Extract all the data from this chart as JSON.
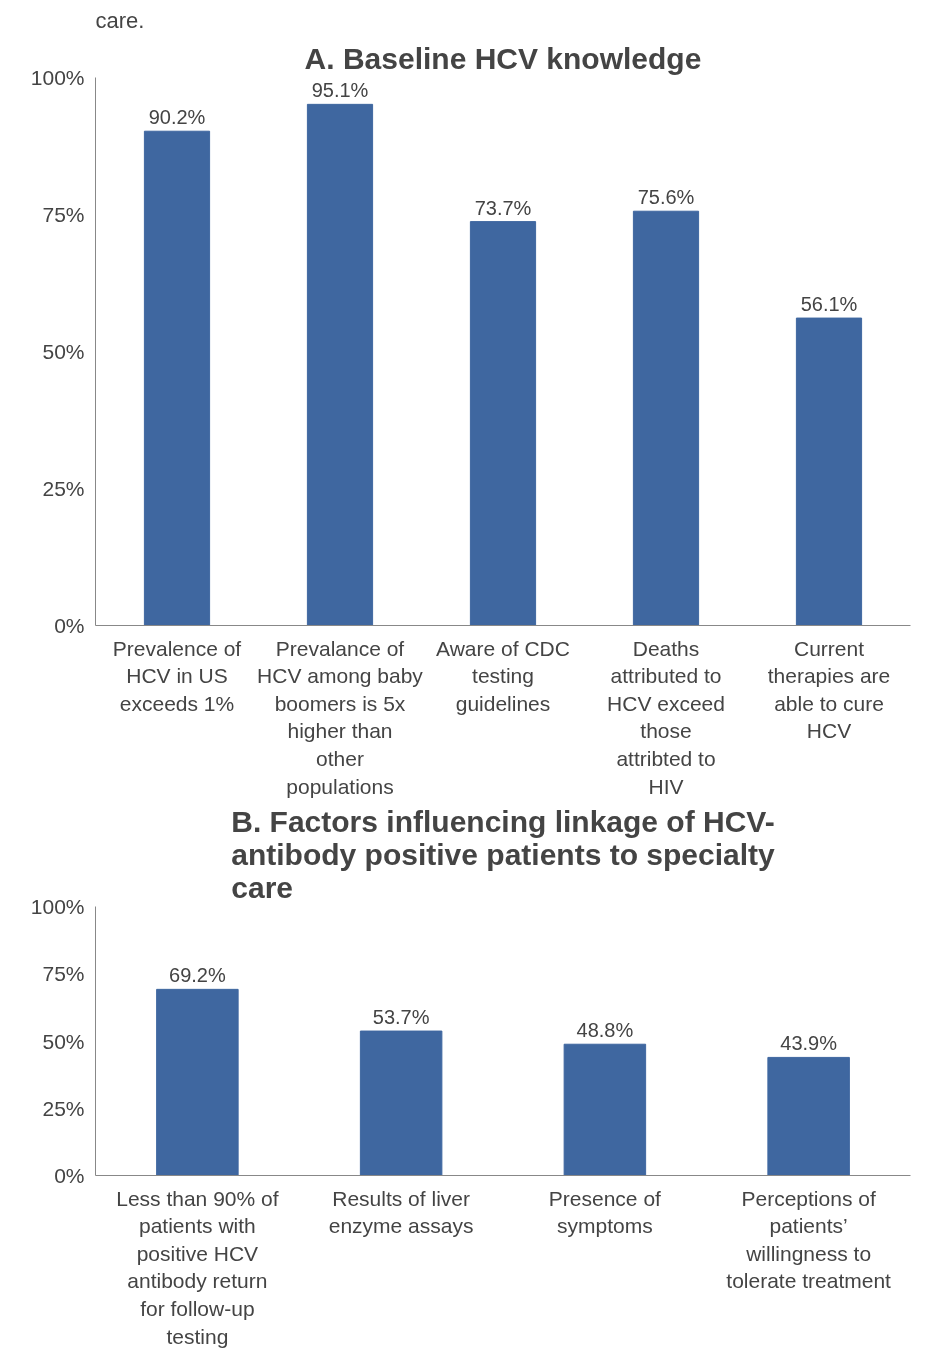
{
  "chart_data": [
    {
      "type": "bar",
      "title": "A. Baseline HCV knowledge",
      "annotations": [
        "care."
      ],
      "categories": [
        "Prevalence of HCV in US exceeds 1%",
        "Prevalance of HCV among baby boomers is 5x higher than other populations",
        "Aware of CDC testing guidelines",
        "Deaths attributed to HCV exceed those attribted to HIV",
        "Current therapies are able to cure HCV"
      ],
      "values": [
        90.2,
        95.1,
        73.7,
        75.6,
        56.1
      ],
      "color": "#3f67a0",
      "ylim": [
        0,
        100
      ],
      "yticks": [
        {
          "value": 0,
          "label": "0%"
        },
        {
          "value": 25,
          "label": "25%"
        },
        {
          "value": 50,
          "label": "50%"
        },
        {
          "value": 75,
          "label": "75%"
        },
        {
          "value": 100,
          "label": "100%"
        }
      ],
      "value_labels": [
        "90.2%",
        "95.1%",
        "73.7%",
        "75.6%",
        "56.1%"
      ],
      "grid": false
    },
    {
      "type": "bar",
      "title": "B. Factors influencing linkage of HCV-antibody positive patients to specialty care",
      "categories": [
        "Less than 90% of patients with positive HCV antibody return for follow-up testing",
        "Results of liver enzyme assays",
        "Presence of symptoms",
        "Perceptions of patients’ willingness to tolerate treatment"
      ],
      "values": [
        69.2,
        53.7,
        48.8,
        43.9
      ],
      "color": "#3f67a0",
      "ylim": [
        0,
        100
      ],
      "yticks": [
        {
          "value": 0,
          "label": "0%"
        },
        {
          "value": 25,
          "label": "25%"
        },
        {
          "value": 50,
          "label": "50%"
        },
        {
          "value": 75,
          "label": "75%"
        },
        {
          "value": 100,
          "label": "100%"
        }
      ],
      "value_labels": [
        "69.2%",
        "53.7%",
        "48.8%",
        "43.9%"
      ],
      "grid": false
    }
  ]
}
